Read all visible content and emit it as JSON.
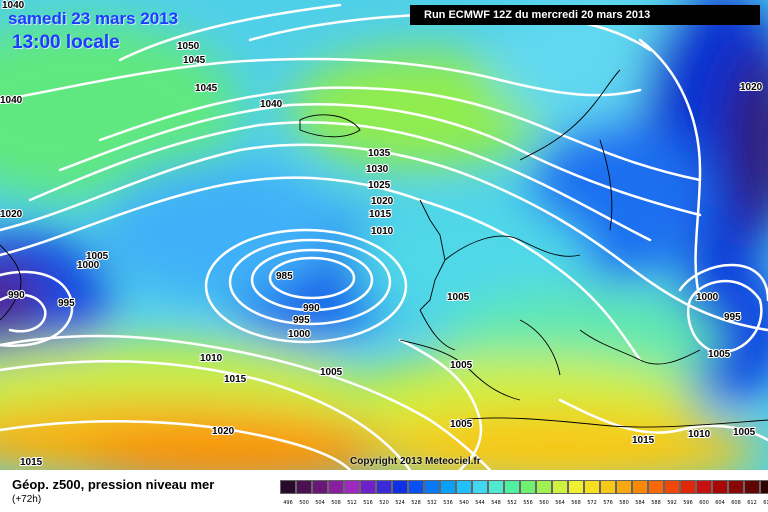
{
  "header": {
    "date_title": "samedi 23 mars 2013",
    "time_title": "13:00 locale",
    "run_info": "Run ECMWF 12Z du mercredi 20 mars 2013"
  },
  "copyright": "Copyright 2013 Meteociel.fr",
  "legend": {
    "title": "Géop. z500, pression niveau mer",
    "subtitle": "(+72h)",
    "ticks": [
      "496",
      "500",
      "504",
      "508",
      "512",
      "516",
      "520",
      "524",
      "528",
      "532",
      "536",
      "540",
      "544",
      "548",
      "552",
      "556",
      "560",
      "564",
      "568",
      "572",
      "576",
      "580",
      "584",
      "588",
      "592",
      "596",
      "600",
      "604",
      "608",
      "612",
      "616"
    ],
    "colors": [
      "#2a0a2a",
      "#4a1050",
      "#6a1878",
      "#8a20a0",
      "#a028c0",
      "#7020c8",
      "#3a2ad8",
      "#1030e8",
      "#0a50f0",
      "#0a78f5",
      "#0aa0f8",
      "#20c0f8",
      "#40d8f0",
      "#50e8d0",
      "#50f0a0",
      "#70f070",
      "#a0f050",
      "#d0f040",
      "#f0f030",
      "#f8e020",
      "#f8c818",
      "#f8a810",
      "#f88808",
      "#f86808",
      "#f04808",
      "#e02808",
      "#c81010",
      "#a80808",
      "#880808",
      "#600404",
      "#300000"
    ]
  },
  "isobar_labels": [
    "1040",
    "1050",
    "1045",
    "1045",
    "1040",
    "1040",
    "1035",
    "1030",
    "1025",
    "1020",
    "1015",
    "1010",
    "985",
    "990",
    "995",
    "1000",
    "1005",
    "1020",
    "1000",
    "1005",
    "990",
    "995",
    "1010",
    "1015",
    "1005",
    "1005",
    "1005",
    "1020",
    "1015",
    "1020",
    "1000",
    "995",
    "1005",
    "1015",
    "1010",
    "1005"
  ]
}
